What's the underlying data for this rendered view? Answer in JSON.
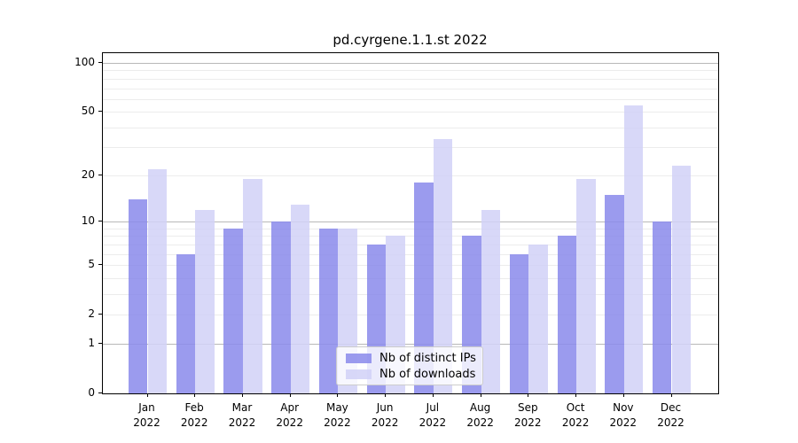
{
  "title": "pd.cyrgene.1.1.st 2022",
  "chart_data": {
    "type": "bar",
    "title": "pd.cyrgene.1.1.st 2022",
    "categories": [
      "Jan 2022",
      "Feb 2022",
      "Mar 2022",
      "Apr 2022",
      "May 2022",
      "Jun 2022",
      "Jul 2022",
      "Aug 2022",
      "Sep 2022",
      "Oct 2022",
      "Nov 2022",
      "Dec 2022"
    ],
    "month_labels": [
      "Jan",
      "Feb",
      "Mar",
      "Apr",
      "May",
      "Jun",
      "Jul",
      "Aug",
      "Sep",
      "Oct",
      "Nov",
      "Dec"
    ],
    "year_label": "2022",
    "series": [
      {
        "name": "Nb of distinct IPs",
        "color": "#8989EBD9",
        "values": [
          14,
          6,
          9,
          10,
          9,
          7,
          18,
          8,
          6,
          8,
          15,
          10
        ]
      },
      {
        "name": "Nb of downloads",
        "color": "#D1D1F7D9",
        "values": [
          22,
          12,
          19,
          13,
          9,
          8,
          34,
          12,
          7,
          19,
          55,
          23
        ]
      }
    ],
    "ylabel": "",
    "xlabel": "",
    "yscale": "symlog-log1p",
    "ytick_values": [
      100,
      50,
      20,
      10,
      5,
      2,
      1,
      0
    ],
    "ytick_labels": [
      "100",
      "50",
      "20",
      "10",
      "5",
      "2",
      "1",
      "0"
    ],
    "ylim": [
      0,
      114
    ],
    "grid": "horizontal; major lines at 1, 10, 100; minor lines at 2-9, 20-90",
    "major_gridline_values": [
      1,
      10,
      100
    ],
    "minor_gridline_values": [
      2,
      3,
      4,
      5,
      6,
      7,
      8,
      9,
      20,
      30,
      40,
      50,
      60,
      70,
      80,
      90
    ],
    "legend_position": "lower center, inside plot",
    "legend_entries": [
      "Nb of distinct IPs",
      "Nb of downloads"
    ]
  },
  "colors": {
    "figure_background": "#ffffff",
    "axis_spine": "#000000",
    "major_grid": "#b8b8b8",
    "minor_grid": "#ececec",
    "distinct_ips_bar": "#8989EBD9",
    "downloads_bar": "#D1D1F7D9",
    "legend_border": "#cccccc",
    "text": "#000000"
  }
}
